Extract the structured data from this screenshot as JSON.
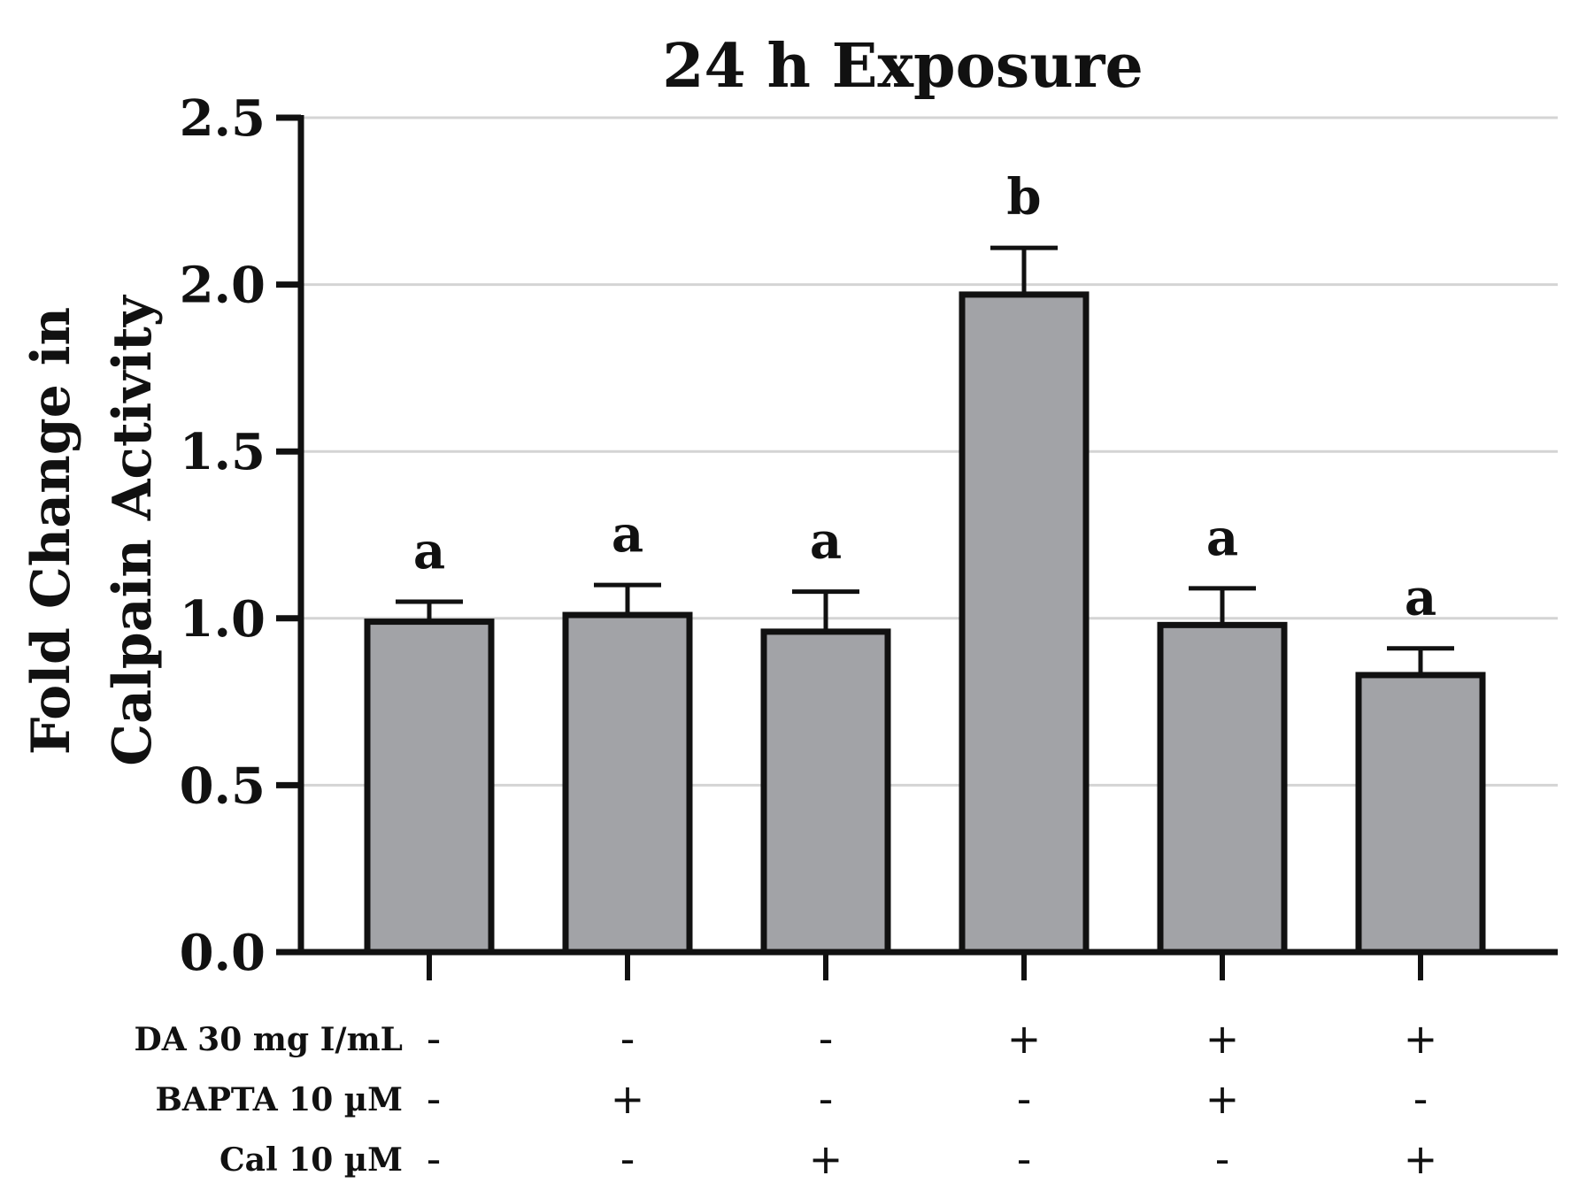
{
  "chart_data": {
    "type": "bar",
    "title": "24 h Exposure",
    "ylabel": [
      "Fold Change in",
      "Calpain Activity"
    ],
    "ylim": [
      0,
      2.5
    ],
    "yticks": [
      "0.0",
      "0.5",
      "1.0",
      "1.5",
      "2.0",
      "2.5"
    ],
    "ytick_values": [
      0,
      0.5,
      1.0,
      1.5,
      2.0,
      2.5
    ],
    "grid": "horizontal",
    "bar_color": "#a2a3a7",
    "values": [
      0.99,
      1.01,
      0.96,
      1.97,
      0.98,
      0.83
    ],
    "errors": [
      0.06,
      0.09,
      0.12,
      0.14,
      0.11,
      0.08
    ],
    "significance": [
      "a",
      "a",
      "a",
      "b",
      "a",
      "a"
    ],
    "treatments": [
      {
        "label": "DA 30 mg I/mL",
        "signs": [
          "-",
          "-",
          "-",
          "+",
          "+",
          "+"
        ]
      },
      {
        "label": "BAPTA 10 µM",
        "signs": [
          "-",
          "+",
          "-",
          "-",
          "+",
          "-"
        ]
      },
      {
        "label": "Cal 10 µM",
        "signs": [
          "-",
          "-",
          "+",
          "-",
          "-",
          "+"
        ]
      }
    ]
  }
}
